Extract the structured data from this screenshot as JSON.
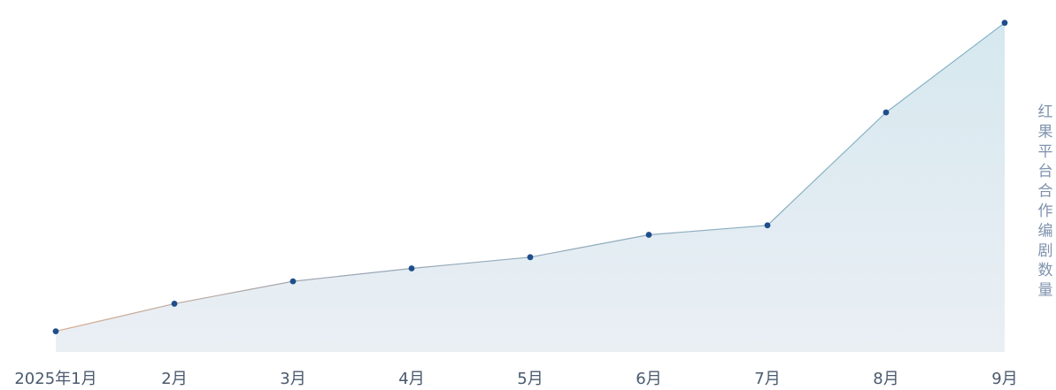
{
  "chart_data": {
    "type": "area",
    "categories": [
      "2025年1月",
      "2月",
      "3月",
      "4月",
      "5月",
      "6月",
      "7月",
      "8月",
      "9月"
    ],
    "series": [
      {
        "values": [
          2,
          18,
          31,
          38.5,
          45,
          58,
          63.5,
          129,
          181
        ]
      }
    ],
    "ylabel": "红果平台合作编剧数量",
    "xlabel": "",
    "title": "",
    "ylim": [
      -10,
      185
    ],
    "grid": false,
    "legend": "none",
    "colors": {
      "line_start": "#d9a98a",
      "line_end": "#7fb3c8",
      "marker": "#1f4e8c",
      "area_top": "#d6e8ef",
      "area_bottom": "#eaeff4",
      "tick_text": "#4a5a6e",
      "ylabel_text": "#7f93ae"
    }
  }
}
